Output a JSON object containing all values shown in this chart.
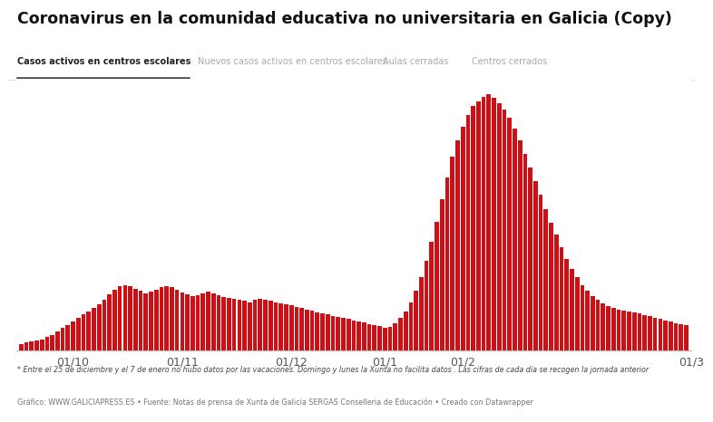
{
  "title": "Coronavirus en la comunidad educativa no universitaria en Galicia (Copy)",
  "tab_labels": [
    "Casos activos en centros escolares",
    "Nuevos casos activos en centros escolares",
    "Aulas cerradas",
    "Centros cerrados"
  ],
  "active_tab": 0,
  "footnote1": "* Entre el 25 de diciembre y el 7 de enero no hubo datos por las vacaciones. Domingo y lunes la Xunta no facilita datos . Las cifras de cada día se recogen la jornada anterior",
  "footnote2": "Gráfico: WWW.GALICIAPRESS.ES • Fuente: Notas de prensa de Xunta de Galicia SERGAS Conselleria de Educación • Creado con Datawrapper",
  "bar_color": "#cc1016",
  "background_color": "#ffffff",
  "x_tick_labels": [
    "01/10",
    "01/11",
    "01/12",
    "01/1",
    "01/2",
    "01/3"
  ],
  "values": [
    18,
    22,
    25,
    28,
    32,
    38,
    45,
    55,
    65,
    75,
    85,
    95,
    105,
    115,
    125,
    135,
    150,
    165,
    178,
    188,
    192,
    188,
    182,
    175,
    168,
    172,
    178,
    185,
    190,
    185,
    178,
    170,
    165,
    160,
    162,
    168,
    172,
    168,
    162,
    158,
    155,
    152,
    148,
    145,
    142,
    148,
    152,
    150,
    146,
    142,
    138,
    135,
    132,
    128,
    124,
    120,
    116,
    112,
    108,
    105,
    102,
    98,
    95,
    92,
    88,
    85,
    82,
    78,
    75,
    72,
    65,
    70,
    80,
    95,
    115,
    140,
    175,
    215,
    265,
    320,
    380,
    445,
    510,
    570,
    620,
    660,
    695,
    720,
    735,
    748,
    755,
    745,
    730,
    710,
    685,
    655,
    620,
    580,
    540,
    500,
    460,
    415,
    375,
    340,
    305,
    270,
    240,
    215,
    192,
    175,
    160,
    148,
    138,
    130,
    125,
    120,
    118,
    115,
    112,
    108,
    104,
    100,
    96,
    92,
    88,
    84,
    80,
    78,
    75
  ],
  "tick_positions": [
    10,
    31,
    52,
    70,
    85,
    129
  ]
}
